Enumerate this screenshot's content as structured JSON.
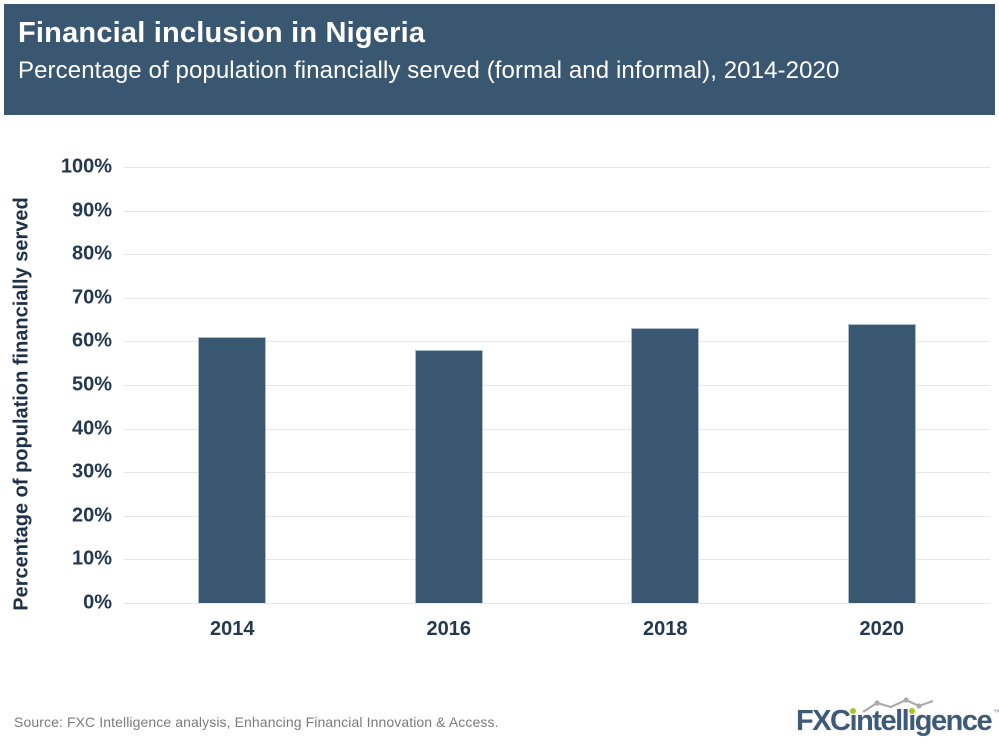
{
  "header": {
    "title": "Financial inclusion in Nigeria",
    "subtitle": "Percentage of population financially served (formal and informal), 2014-2020"
  },
  "chart_data": {
    "type": "bar",
    "categories": [
      "2014",
      "2016",
      "2018",
      "2020"
    ],
    "values": [
      61,
      58,
      63,
      64
    ],
    "title": "Financial inclusion in Nigeria",
    "subtitle": "Percentage of population financially served (formal and informal), 2014-2020",
    "xlabel": "",
    "ylabel": "Percentage of population financially served",
    "ylim": [
      0,
      100
    ],
    "ytick_step": 10,
    "ytick_suffix": "%",
    "grid": true,
    "legend": "none",
    "bar_color": "#3A5772"
  },
  "footer": {
    "source": "Source: FXC Intelligence analysis, Enhancing Financial Innovation & Access."
  },
  "logo": {
    "brand_prefix": "FXC",
    "brand_suffix": "intelligence",
    "trademark": "™"
  },
  "colors": {
    "header_bg": "#3A5772",
    "bar_fill": "#3A5772",
    "axis_text": "#243850",
    "gridline": "#E7E7E7",
    "source_text": "#7B7B7B",
    "logo_blue": "#3D5A78",
    "logo_green": "#A4C424"
  }
}
